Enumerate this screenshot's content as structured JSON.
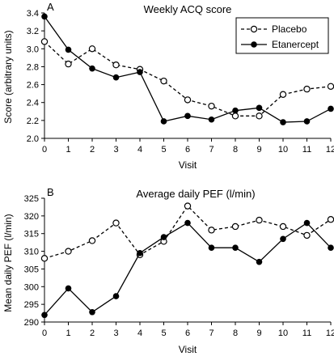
{
  "chart_data": [
    {
      "type": "line",
      "panel_label": "A",
      "title": "Weekly ACQ score",
      "xlabel": "Visit",
      "ylabel": "Score (arbitrary units)",
      "x": [
        0,
        1,
        2,
        3,
        4,
        5,
        6,
        7,
        8,
        9,
        10,
        11,
        12
      ],
      "xlim": [
        0,
        12
      ],
      "ylim": [
        2.0,
        3.4
      ],
      "yticks": [
        "2.0",
        "2.2",
        "2.4",
        "2.6",
        "2.8",
        "3.0",
        "3.2",
        "3.4"
      ],
      "legend": "top-right",
      "series": [
        {
          "name": "Placebo",
          "style": "dashed-open",
          "values": [
            3.08,
            2.83,
            3.0,
            2.82,
            2.77,
            2.64,
            2.43,
            2.36,
            2.25,
            2.25,
            2.49,
            2.55,
            2.58
          ]
        },
        {
          "name": "Etanercept",
          "style": "solid-filled",
          "values": [
            3.36,
            2.99,
            2.78,
            2.68,
            2.74,
            2.19,
            2.25,
            2.21,
            2.31,
            2.34,
            2.18,
            2.19,
            2.33
          ]
        }
      ]
    },
    {
      "type": "line",
      "panel_label": "B",
      "title": "Average daily PEF (l/min)",
      "xlabel": "Visit",
      "ylabel": "Mean daily PEF (l/min)",
      "x": [
        0,
        1,
        2,
        3,
        4,
        5,
        6,
        7,
        8,
        9,
        10,
        11,
        12
      ],
      "xlim": [
        0,
        12
      ],
      "ylim": [
        290,
        325
      ],
      "yticks": [
        "290",
        "295",
        "300",
        "305",
        "310",
        "315",
        "320",
        "325"
      ],
      "series": [
        {
          "name": "Placebo",
          "style": "dashed-open",
          "values": [
            308,
            310,
            313,
            318,
            309,
            312.8,
            322.8,
            316,
            317,
            318.8,
            317,
            314.5,
            319
          ]
        },
        {
          "name": "Etanercept",
          "style": "solid-filled",
          "values": [
            292,
            299.5,
            292.8,
            297.3,
            309.5,
            314,
            318,
            311,
            311,
            307,
            313.5,
            318,
            311
          ]
        }
      ]
    }
  ]
}
